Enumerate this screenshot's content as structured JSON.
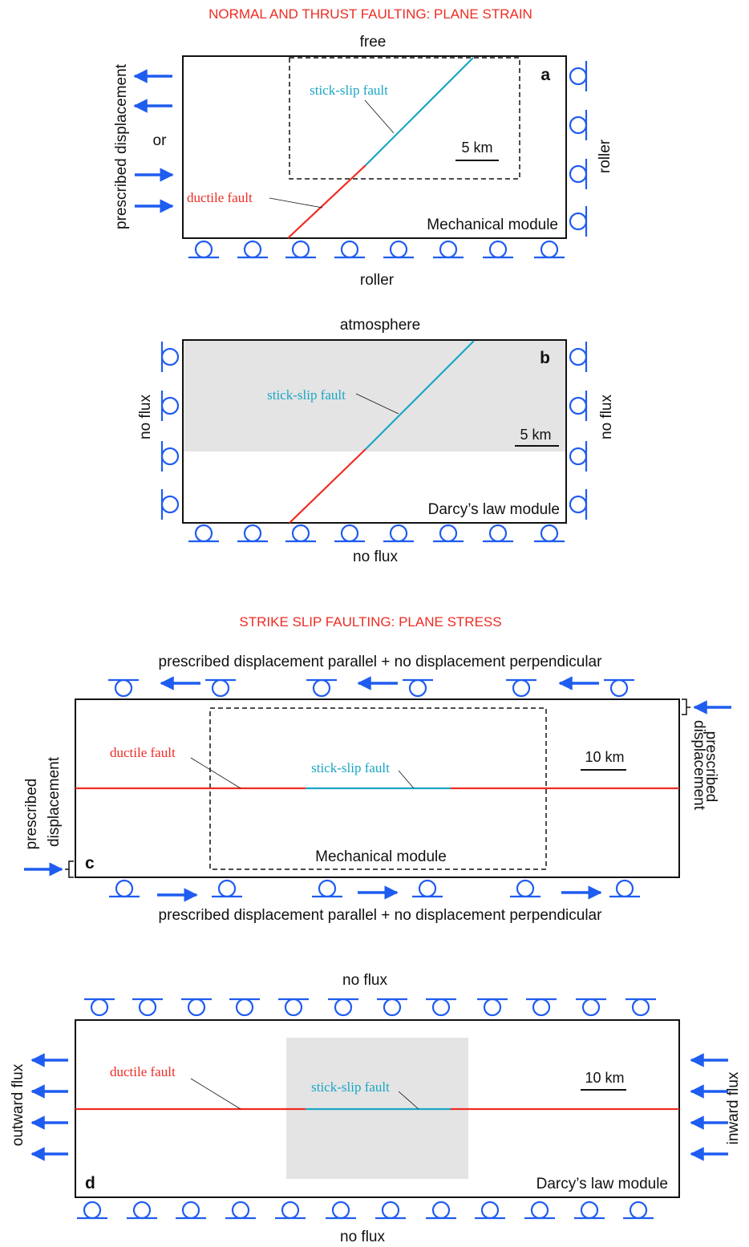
{
  "colors": {
    "title": "#ee2c24",
    "boundary": "#1f5cf0",
    "ductile": "#ee2c24",
    "stick": "#1ba6c4",
    "shade": "#e4e4e4",
    "ink": "#111111"
  },
  "sections": {
    "top_title": "NORMAL AND THRUST FAULTING: PLANE STRAIN",
    "bottom_title": "STRIKE SLIP FAULTING: PLANE STRESS"
  },
  "panel_a": {
    "letter": "a",
    "top_label": "free",
    "bottom_label": "roller",
    "right_label": "roller",
    "left_label": "prescribed displacement",
    "or_label": "or",
    "stick_label": "stick-slip fault",
    "ductile_label": "ductile fault",
    "scale": "5 km",
    "module": "Mechanical module"
  },
  "panel_b": {
    "letter": "b",
    "top_label": "atmosphere",
    "bottom_label": "no flux",
    "left_label": "no flux",
    "right_label": "no flux",
    "stick_label": "stick-slip fault",
    "scale": "5 km",
    "module": "Darcy’s law module"
  },
  "panel_c": {
    "letter": "c",
    "top_label": "prescribed displacement parallel + no displacement perpendicular",
    "bottom_label": "prescribed displacement parallel + no displacement perpendicular",
    "left_label_1": "prescribed",
    "left_label_2": "displacement",
    "right_label_1": "prescribed",
    "right_label_2": "displacement",
    "ductile_label": "ductile fault",
    "stick_label": "stick-slip fault",
    "scale": "10 km",
    "module": "Mechanical module"
  },
  "panel_d": {
    "letter": "d",
    "top_label": "no flux",
    "bottom_label": "no flux",
    "left_label": "outward flux",
    "right_label": "inward flux",
    "ductile_label": "ductile fault",
    "stick_label": "stick-slip fault",
    "scale": "10 km",
    "module": "Darcy’s law module"
  }
}
